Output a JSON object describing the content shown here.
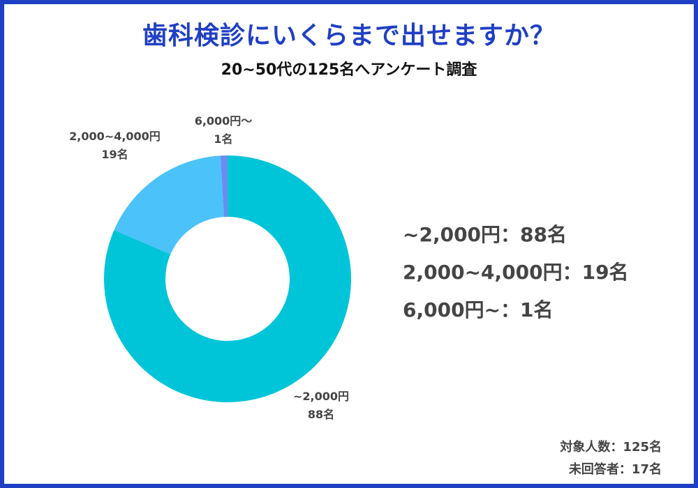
{
  "title": "歯科検診にいくらまで出せますか？",
  "subtitle": "20~50代の125名へアンケート調査",
  "chart_data": {
    "type": "pie",
    "style": "donut",
    "title": "歯科検診にいくらまで出せますか？",
    "subtitle": "20~50代の125名へアンケート調査",
    "categories": [
      "~2,000円",
      "2,000~4,000円",
      "6,000円~"
    ],
    "values": [
      88,
      19,
      1
    ],
    "unit": "名",
    "colors": [
      "#00c5d8",
      "#4cc2fa",
      "#6d8cf2"
    ],
    "callouts": [
      {
        "label": "~2,000円",
        "value_text": "88名"
      },
      {
        "label": "2,000~4,000円",
        "value_text": "19名"
      },
      {
        "label": "6,000円〜",
        "value_text": "1名"
      }
    ],
    "legend": [
      "~2,000円：88名",
      "2,000~4,000円：19名",
      "6,000円~：1名"
    ]
  },
  "footer": {
    "respondents": "対象人数：125名",
    "unanswered": "未回答者：17名"
  }
}
